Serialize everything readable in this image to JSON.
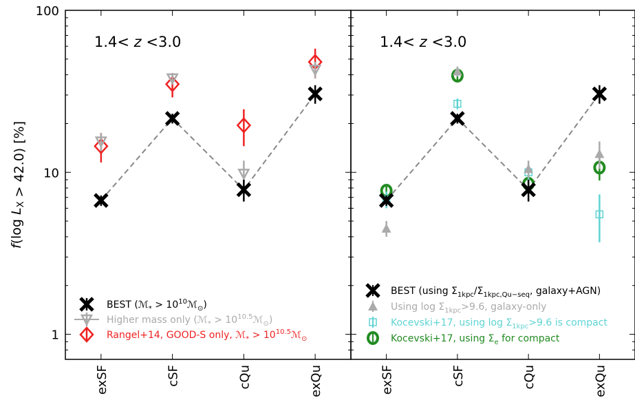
{
  "chart_data": {
    "type": "scatter",
    "ylabel": "f(log L_X > 42.0) [%]",
    "yscale": "log",
    "ylim": [
      0.7,
      100
    ],
    "y_ticks": [
      {
        "value": 1,
        "label": "1"
      },
      {
        "value": 10,
        "label": "10"
      },
      {
        "value": 100,
        "label": "100"
      }
    ],
    "categories": [
      "exSF",
      "cSF",
      "cQu",
      "exQu"
    ],
    "panels": [
      {
        "title": "1.4< z <3.0",
        "legend_position": "lower-left",
        "series": [
          {
            "name": "BEST (M* > 10^10 M☉)",
            "marker": "x",
            "color": "#000000",
            "values": [
              6.7,
              21.5,
              7.8,
              30.5
            ],
            "errors": [
              0.5,
              1.5,
              1.2,
              4
            ],
            "dashed_line": true
          },
          {
            "name": "Higher mass only (M* > 10^10.5 M☉)",
            "marker": "triangle-down",
            "color": "#aaaaaa",
            "values": [
              15.5,
              38,
              9.8,
              43
            ],
            "errors": [
              2,
              3,
              2,
              5
            ],
            "dashed_line": false
          },
          {
            "name": "Rangel+14, GOOD-S only, M* > 10^10.5 M☉",
            "marker": "diamond",
            "color": "#ee2222",
            "values": [
              14.5,
              35,
              19.5,
              48
            ],
            "errors": [
              3,
              6,
              5,
              10
            ],
            "dashed_line": false
          }
        ]
      },
      {
        "title": "1.4< z <3.0",
        "legend_position": "lower-left",
        "series": [
          {
            "name": "BEST (using Σ1kpc/Σ1kpc,Qu−seq, galaxy+AGN)",
            "marker": "x",
            "color": "#000000",
            "values": [
              6.7,
              21.5,
              7.8,
              30.5
            ],
            "errors": [
              0.5,
              1.5,
              1.2,
              4
            ],
            "dashed_line": true
          },
          {
            "name": "Using log Σ1kpc>9.6, galaxy-only",
            "marker": "triangle-up",
            "color": "#aaaaaa",
            "values": [
              4.5,
              42,
              10.5,
              13
            ],
            "errors": [
              0.5,
              3,
              1.3,
              2.5
            ],
            "dashed_line": false
          },
          {
            "name": "Kocevski+17, using log Σ1kpc>9.6 is compact",
            "marker": "square",
            "color": "#5fd3d3",
            "values": [
              6.8,
              26.5,
              10,
              5.5
            ],
            "errors": [
              0.8,
              2,
              1.3,
              1.8
            ],
            "dashed_line": false
          },
          {
            "name": "Kocevski+17, using Σe for compact",
            "marker": "circle",
            "color": "#228b22",
            "values": [
              7.7,
              39.5,
              8.5,
              10.7
            ],
            "errors": [
              0.6,
              3,
              0.8,
              1.8
            ],
            "dashed_line": false
          }
        ]
      }
    ]
  },
  "legend_left": [
    {
      "pre": "BEST (",
      "math": "ℳ",
      "sub1": "*",
      "mid": " > 10",
      "sup": "10",
      "end": "ℳ",
      "sub2": "⊙",
      "tail": ")"
    },
    {
      "pre": "Higher mass only (",
      "math": "ℳ",
      "sub1": "*",
      "mid": " > 10",
      "sup": "10.5",
      "end": "ℳ",
      "sub2": "⊙",
      "tail": ")"
    },
    {
      "pre": "Rangel+14, GOOD-S only, ",
      "math": "ℳ",
      "sub1": "*",
      "mid": " > 10",
      "sup": "10.5",
      "end": "ℳ",
      "sub2": "⊙",
      "tail": ""
    }
  ],
  "legend_right": [
    {
      "pre": "BEST (using Σ",
      "sub1": "1kpc",
      "mid": "/Σ",
      "sub2": "1kpc,Qu−seq",
      "tail": ", galaxy+AGN)"
    },
    {
      "pre": "Using log Σ",
      "sub1": "1kpc",
      "mid": "",
      "sub2": "",
      "tail": ">9.6, galaxy-only"
    },
    {
      "pre": "Kocevski+17, using log Σ",
      "sub1": "1kpc",
      "mid": "",
      "sub2": "",
      "tail": ">9.6 is compact"
    },
    {
      "pre": "Kocevski+17, using Σ",
      "sub1": "e",
      "mid": "",
      "sub2": "",
      "tail": " for compact"
    }
  ]
}
